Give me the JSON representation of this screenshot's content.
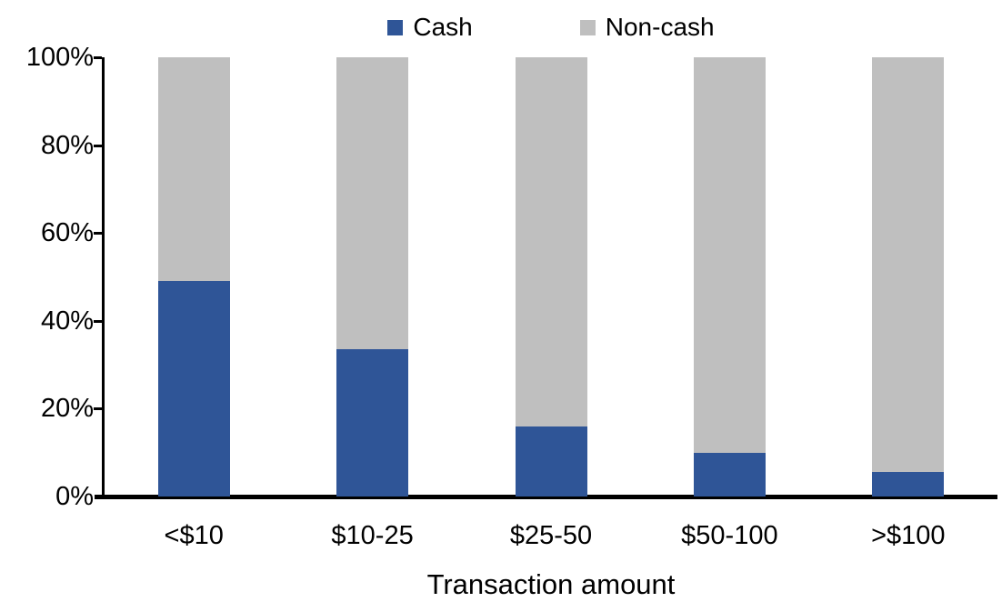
{
  "chart_data": {
    "type": "bar",
    "variant": "stacked-100-percent",
    "title": "",
    "xlabel": "Transaction amount",
    "ylabel": "",
    "categories": [
      "<$10",
      "$10-25",
      "$25-50",
      "$50-100",
      ">$100"
    ],
    "series": [
      {
        "name": "Cash",
        "color": "#2F5597",
        "values": [
          49,
          33.5,
          16,
          10,
          5.5
        ]
      },
      {
        "name": "Non-cash",
        "color": "#BFBFBF",
        "values": [
          51,
          66.5,
          84,
          90,
          94.5
        ]
      }
    ],
    "ylim": [
      0,
      100
    ],
    "ytick_values": [
      0,
      20,
      40,
      60,
      80,
      100
    ],
    "ytick_labels": [
      "0%",
      "20%",
      "40%",
      "60%",
      "80%",
      "100%"
    ],
    "legend_position": "top-center",
    "grid": false,
    "axis_color": "#000000"
  }
}
